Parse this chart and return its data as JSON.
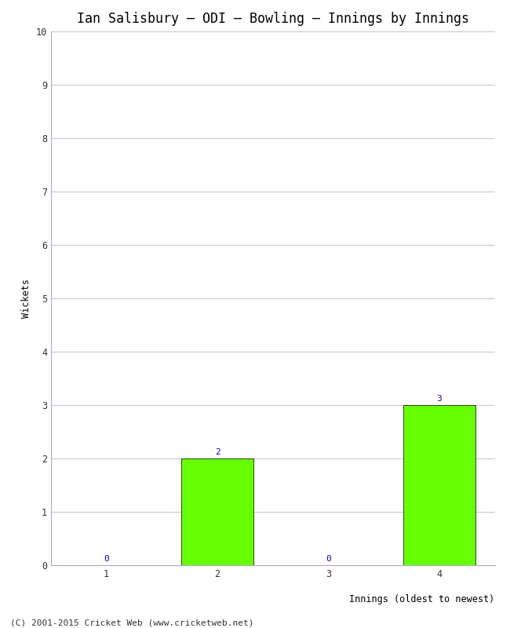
{
  "title": "Ian Salisbury – ODI – Bowling – Innings by Innings",
  "xlabel": "Innings (oldest to newest)",
  "ylabel": "Wickets",
  "categories": [
    1,
    2,
    3,
    4
  ],
  "values": [
    0,
    2,
    0,
    3
  ],
  "bar_color": "#66ff00",
  "bar_edgecolor": "#000000",
  "label_color": "#0000cc",
  "ylim": [
    0,
    10
  ],
  "yticks": [
    0,
    1,
    2,
    3,
    4,
    5,
    6,
    7,
    8,
    9,
    10
  ],
  "background_color": "#ffffff",
  "grid_color": "#c8c8c8",
  "spine_color": "#aaaacc",
  "footer": "(C) 2001-2015 Cricket Web (www.cricketweb.net)",
  "title_fontsize": 12,
  "axis_label_fontsize": 8.5,
  "tick_fontsize": 8.5,
  "annotation_fontsize": 8,
  "footer_fontsize": 8,
  "bar_width": 0.65
}
